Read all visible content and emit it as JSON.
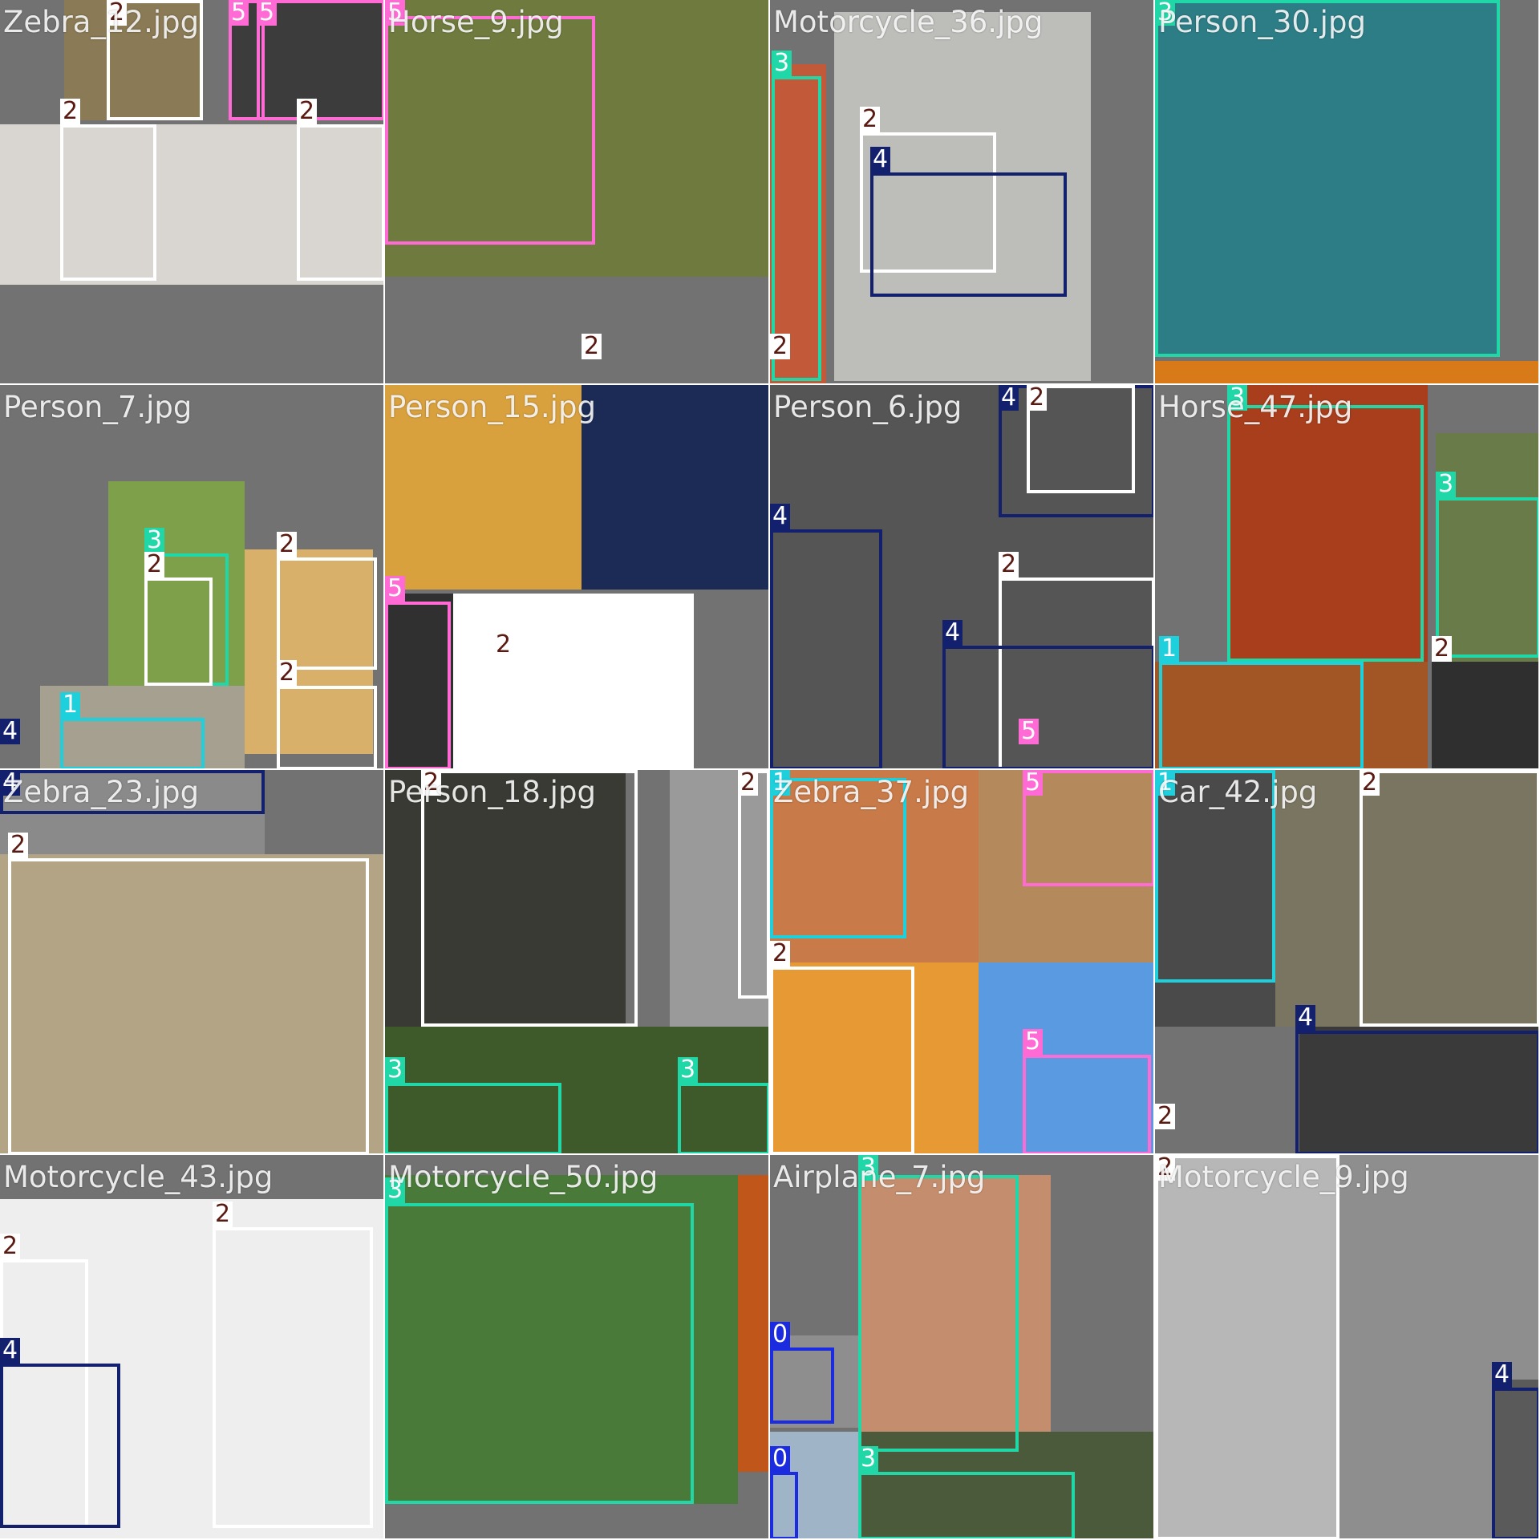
{
  "mosaic": {
    "class_colors": {
      "0": "#1a2be0",
      "1": "#1ecfdc",
      "2": "#ffffff",
      "3": "#20d7a8",
      "4": "#12206e",
      "5": "#ff6ad5"
    },
    "tiles": [
      {
        "name": "Zebra_12.jpg"
      },
      {
        "name": "Horse_9.jpg"
      },
      {
        "name": "Motorcycle_36.jpg"
      },
      {
        "name": "Person_30.jpg"
      },
      {
        "name": "Person_7.jpg"
      },
      {
        "name": "Person_15.jpg"
      },
      {
        "name": "Person_6.jpg"
      },
      {
        "name": "Horse_47.jpg"
      },
      {
        "name": "Zebra_23.jpg"
      },
      {
        "name": "Person_18.jpg"
      },
      {
        "name": "Zebra_37.jpg"
      },
      {
        "name": "Car_42.jpg"
      },
      {
        "name": "Motorcycle_43.jpg"
      },
      {
        "name": "Motorcycle_50.jpg"
      },
      {
        "name": "Airplane_7.jpg"
      },
      {
        "name": "Motorcycle_9.jpg"
      }
    ]
  }
}
